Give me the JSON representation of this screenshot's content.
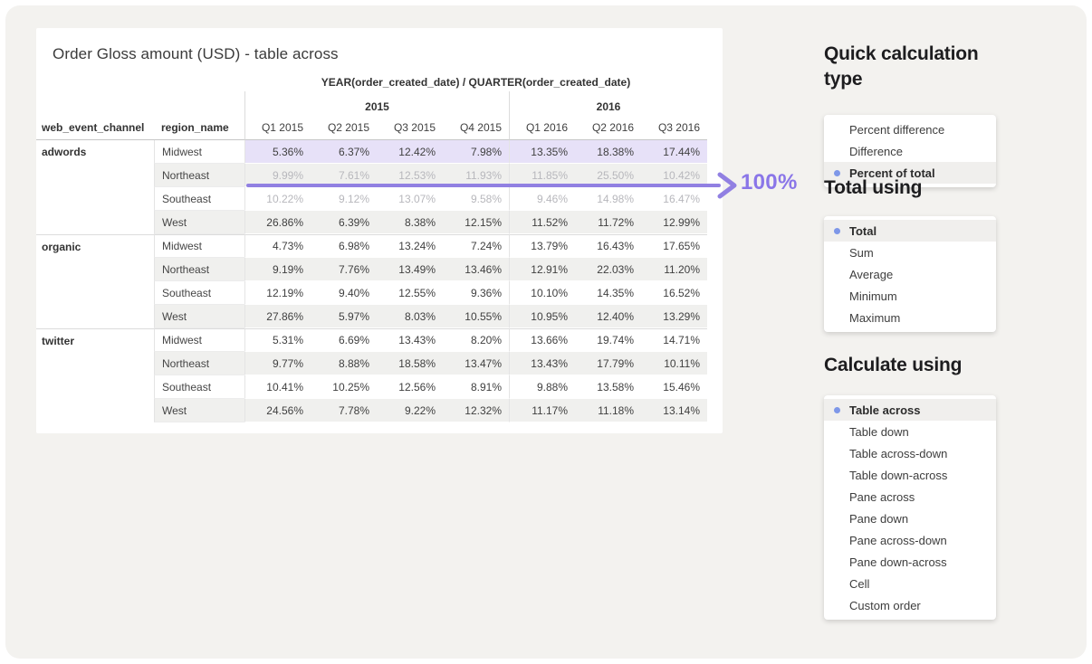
{
  "colors": {
    "accent_arrow": "#9180e2",
    "accent_label": "#8a76e8",
    "highlight_row_bg": "#e7e1f8",
    "selected_dot": "#7e97e8",
    "page_bg": "#f3f2ef"
  },
  "card": {
    "title": "Order Gloss amount (USD) - table across",
    "table": {
      "dimension_header": "YEAR(order_created_date) / QUARTER(order_created_date)",
      "col1_header": "web_event_channel",
      "col2_header": "region_name",
      "year_groups": [
        {
          "label": "2015",
          "span": 4
        },
        {
          "label": "2016",
          "span": 3
        }
      ],
      "quarter_headers": [
        "Q1 2015",
        "Q2 2015",
        "Q3 2015",
        "Q4 2015",
        "Q1 2016",
        "Q2 2016",
        "Q3 2016"
      ],
      "groups": [
        {
          "channel": "adwords",
          "rows": [
            {
              "region": "Midwest",
              "style": "highlight",
              "values": [
                "5.36%",
                "6.37%",
                "12.42%",
                "7.98%",
                "13.35%",
                "18.38%",
                "17.44%"
              ]
            },
            {
              "region": "Northeast",
              "style": "faded",
              "values": [
                "9.99%",
                "7.61%",
                "12.53%",
                "11.93%",
                "11.85%",
                "25.50%",
                "10.42%"
              ]
            },
            {
              "region": "Southeast",
              "style": "faded",
              "values": [
                "10.22%",
                "9.12%",
                "13.07%",
                "9.58%",
                "9.46%",
                "14.98%",
                "16.47%"
              ]
            },
            {
              "region": "West",
              "style": "normal",
              "values": [
                "26.86%",
                "6.39%",
                "8.38%",
                "12.15%",
                "11.52%",
                "11.72%",
                "12.99%"
              ]
            }
          ]
        },
        {
          "channel": "organic",
          "rows": [
            {
              "region": "Midwest",
              "style": "normal",
              "values": [
                "4.73%",
                "6.98%",
                "13.24%",
                "7.24%",
                "13.79%",
                "16.43%",
                "17.65%"
              ]
            },
            {
              "region": "Northeast",
              "style": "normal",
              "values": [
                "9.19%",
                "7.76%",
                "13.49%",
                "13.46%",
                "12.91%",
                "22.03%",
                "11.20%"
              ]
            },
            {
              "region": "Southeast",
              "style": "normal",
              "values": [
                "12.19%",
                "9.40%",
                "12.55%",
                "9.36%",
                "10.10%",
                "14.35%",
                "16.52%"
              ]
            },
            {
              "region": "West",
              "style": "normal",
              "values": [
                "27.86%",
                "5.97%",
                "8.03%",
                "10.55%",
                "10.95%",
                "12.40%",
                "13.29%"
              ]
            }
          ]
        },
        {
          "channel": "twitter",
          "rows": [
            {
              "region": "Midwest",
              "style": "normal",
              "values": [
                "5.31%",
                "6.69%",
                "13.43%",
                "8.20%",
                "13.66%",
                "19.74%",
                "14.71%"
              ]
            },
            {
              "region": "Northeast",
              "style": "normal",
              "values": [
                "9.77%",
                "8.88%",
                "18.58%",
                "13.47%",
                "13.43%",
                "17.79%",
                "10.11%"
              ]
            },
            {
              "region": "Southeast",
              "style": "normal",
              "values": [
                "10.41%",
                "10.25%",
                "12.56%",
                "8.91%",
                "9.88%",
                "13.58%",
                "15.46%"
              ]
            },
            {
              "region": "West",
              "style": "normal",
              "values": [
                "24.56%",
                "7.78%",
                "9.22%",
                "12.32%",
                "11.17%",
                "11.18%",
                "13.14%"
              ]
            }
          ]
        }
      ]
    },
    "annotation": {
      "label": "100%"
    }
  },
  "panels": [
    {
      "heading": "Quick calculation type",
      "items": [
        {
          "label": "Percent difference",
          "selected": false
        },
        {
          "label": "Difference",
          "selected": false
        },
        {
          "label": "Percent of total",
          "selected": true
        }
      ]
    },
    {
      "heading": "Total using",
      "items": [
        {
          "label": "Total",
          "selected": true
        },
        {
          "label": "Sum",
          "selected": false
        },
        {
          "label": "Average",
          "selected": false
        },
        {
          "label": "Minimum",
          "selected": false
        },
        {
          "label": "Maximum",
          "selected": false
        }
      ]
    },
    {
      "heading": "Calculate using",
      "items": [
        {
          "label": "Table across",
          "selected": true
        },
        {
          "label": "Table down",
          "selected": false
        },
        {
          "label": "Table across-down",
          "selected": false
        },
        {
          "label": "Table down-across",
          "selected": false
        },
        {
          "label": "Pane across",
          "selected": false
        },
        {
          "label": "Pane down",
          "selected": false
        },
        {
          "label": "Pane across-down",
          "selected": false
        },
        {
          "label": "Pane down-across",
          "selected": false
        },
        {
          "label": "Cell",
          "selected": false
        },
        {
          "label": "Custom order",
          "selected": false
        }
      ]
    }
  ]
}
